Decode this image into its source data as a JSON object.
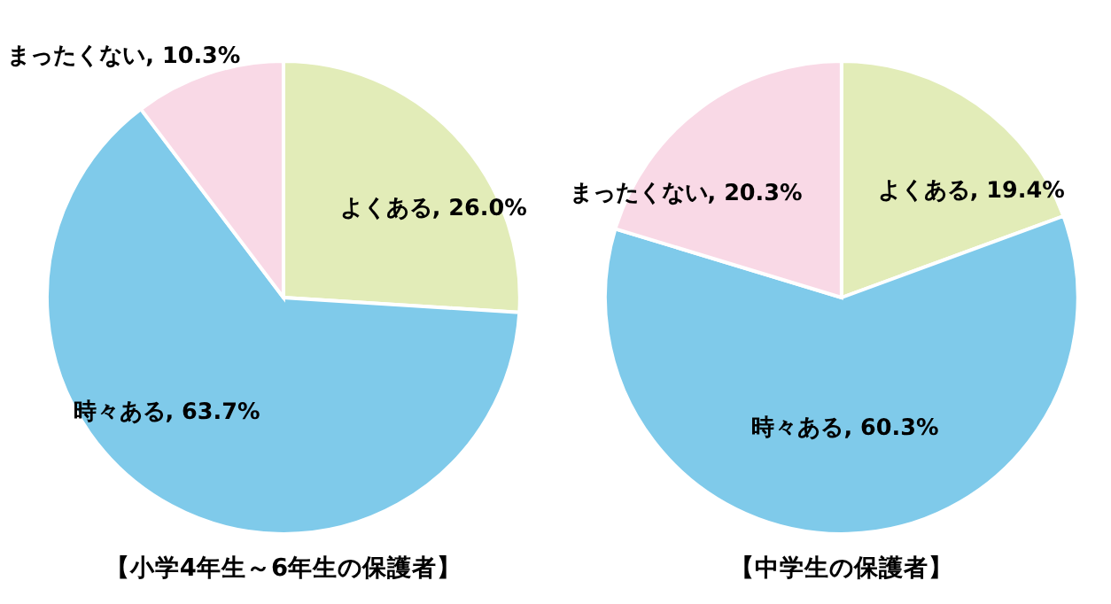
{
  "chart_data": [
    {
      "type": "pie",
      "title": "【小学4年生～6年生の保護者】",
      "categories": [
        "よくある",
        "時々ある",
        "まったくない"
      ],
      "values": [
        26.0,
        63.7,
        10.3
      ],
      "value_labels": [
        "26.0%",
        "63.7%",
        "10.3%"
      ],
      "colors": [
        "#e2ecb8",
        "#7fcaea",
        "#f9d9e6"
      ],
      "legend": false
    },
    {
      "type": "pie",
      "title": "【中学生の保護者】",
      "categories": [
        "よくある",
        "時々ある",
        "まったくない"
      ],
      "values": [
        19.4,
        60.3,
        20.3
      ],
      "value_labels": [
        "19.4%",
        "60.3%",
        "20.3%"
      ],
      "colors": [
        "#e2ecb8",
        "#7fcaea",
        "#f9d9e6"
      ],
      "legend": false
    }
  ]
}
